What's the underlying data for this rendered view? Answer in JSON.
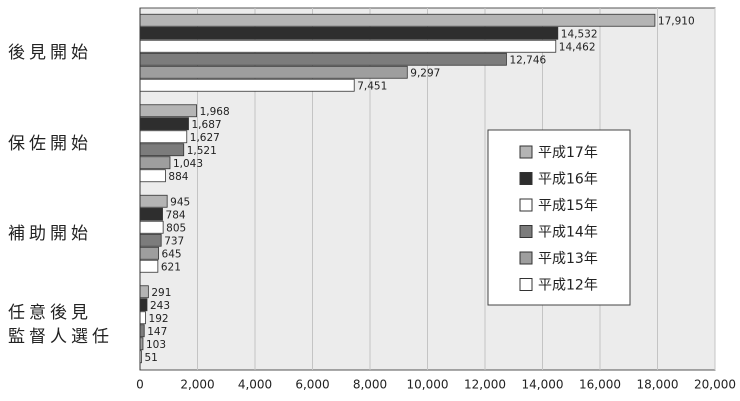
{
  "chart_data": {
    "type": "bar",
    "orientation": "horizontal",
    "categories": [
      "後見開始",
      "保佐開始",
      "補助開始",
      "任意後見\n監督人選任"
    ],
    "series": [
      {
        "name": "平成17年",
        "color": "#b4b4b4",
        "values": [
          17910,
          1968,
          945,
          291
        ],
        "value_labels": [
          "17,910",
          "1,968",
          "945",
          "291"
        ]
      },
      {
        "name": "平成16年",
        "color": "#2e2e2e",
        "values": [
          14532,
          1687,
          784,
          243
        ],
        "value_labels": [
          "14,532",
          "1,687",
          "784",
          "243"
        ]
      },
      {
        "name": "平成15年",
        "color": "#ffffff",
        "values": [
          14462,
          1627,
          805,
          192
        ],
        "value_labels": [
          "14,462",
          "1,627",
          "805",
          "192"
        ]
      },
      {
        "name": "平成14年",
        "color": "#7c7c7c",
        "values": [
          12746,
          1521,
          737,
          147
        ],
        "value_labels": [
          "12,746",
          "1,521",
          "737",
          "147"
        ]
      },
      {
        "name": "平成13年",
        "color": "#9e9e9e",
        "values": [
          9297,
          1043,
          645,
          103
        ],
        "value_labels": [
          "9,297",
          "1,043",
          "645",
          "103"
        ]
      },
      {
        "name": "平成12年",
        "color": "#ffffff",
        "values": [
          7451,
          884,
          621,
          51
        ],
        "value_labels": [
          "7,451",
          "884",
          "621",
          "51"
        ]
      }
    ],
    "xlim": [
      0,
      20000
    ],
    "xticks": [
      0,
      {
        "value": 2000,
        "label": "2,000"
      },
      {
        "value": 4000,
        "label": "4,000"
      },
      {
        "value": 6000,
        "label": "6,000"
      },
      {
        "value": 8000,
        "label": "8,000"
      },
      {
        "value": 10000,
        "label": "10,000"
      },
      {
        "value": 12000,
        "label": "12,000"
      },
      {
        "value": 14000,
        "label": "14,000"
      },
      {
        "value": 16000,
        "label": "16,000"
      },
      {
        "value": 18000,
        "label": "18,000"
      },
      {
        "value": 20000,
        "label": "20,000"
      }
    ],
    "grid": true,
    "legend": "right"
  }
}
